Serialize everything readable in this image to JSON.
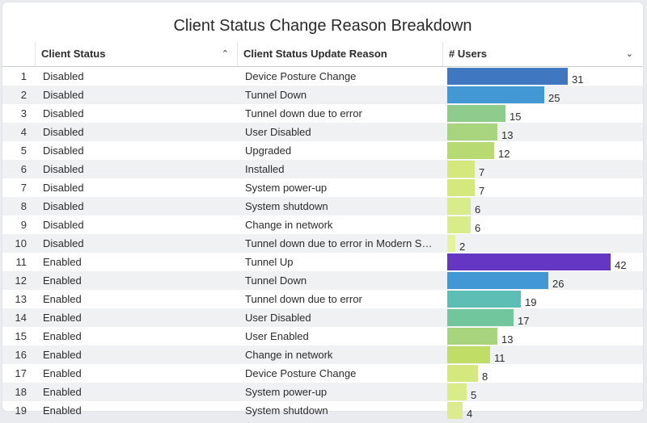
{
  "title": "Client Status Change Reason Breakdown",
  "columns": {
    "status": "Client Status",
    "reason": "Client Status Update Reason",
    "users": "# Users"
  },
  "icons": {
    "status_sort": "chevron-up-icon",
    "users_sort": "chevron-down-icon"
  },
  "rows": [
    {
      "n": "1",
      "status": "Disabled",
      "reason": "Device Posture Change",
      "users": 31,
      "color": "#3f78c1"
    },
    {
      "n": "2",
      "status": "Disabled",
      "reason": "Tunnel Down",
      "users": 25,
      "color": "#4298d4"
    },
    {
      "n": "3",
      "status": "Disabled",
      "reason": "Tunnel down due to error",
      "users": 15,
      "color": "#8dcc8c"
    },
    {
      "n": "4",
      "status": "Disabled",
      "reason": "User Disabled",
      "users": 13,
      "color": "#a8d47e"
    },
    {
      "n": "5",
      "status": "Disabled",
      "reason": "Upgraded",
      "users": 12,
      "color": "#b8da72"
    },
    {
      "n": "6",
      "status": "Disabled",
      "reason": "Installed",
      "users": 7,
      "color": "#d4e87e"
    },
    {
      "n": "7",
      "status": "Disabled",
      "reason": "System power-up",
      "users": 7,
      "color": "#d4e87e"
    },
    {
      "n": "8",
      "status": "Disabled",
      "reason": "System shutdown",
      "users": 6,
      "color": "#d8ec8a"
    },
    {
      "n": "9",
      "status": "Disabled",
      "reason": "Change in network",
      "users": 6,
      "color": "#d8ec8a"
    },
    {
      "n": "10",
      "status": "Disabled",
      "reason": "Tunnel down due to error in Modern S…",
      "users": 2,
      "color": "#e4f29e"
    },
    {
      "n": "11",
      "status": "Enabled",
      "reason": "Tunnel Up",
      "users": 42,
      "color": "#6536c4"
    },
    {
      "n": "12",
      "status": "Enabled",
      "reason": "Tunnel Down",
      "users": 26,
      "color": "#4298d4"
    },
    {
      "n": "13",
      "status": "Enabled",
      "reason": "Tunnel down due to error",
      "users": 19,
      "color": "#5cbeb4"
    },
    {
      "n": "14",
      "status": "Enabled",
      "reason": "User Disabled",
      "users": 17,
      "color": "#72c69e"
    },
    {
      "n": "15",
      "status": "Enabled",
      "reason": "User Enabled",
      "users": 13,
      "color": "#a8d47e"
    },
    {
      "n": "16",
      "status": "Enabled",
      "reason": "Change in network",
      "users": 11,
      "color": "#c0de66"
    },
    {
      "n": "17",
      "status": "Enabled",
      "reason": "Device Posture Change",
      "users": 8,
      "color": "#d4e87e"
    },
    {
      "n": "18",
      "status": "Enabled",
      "reason": "System power-up",
      "users": 5,
      "color": "#d8ec8a"
    },
    {
      "n": "19",
      "status": "Enabled",
      "reason": "System shutdown",
      "users": 4,
      "color": "#dceb90"
    }
  ]
}
